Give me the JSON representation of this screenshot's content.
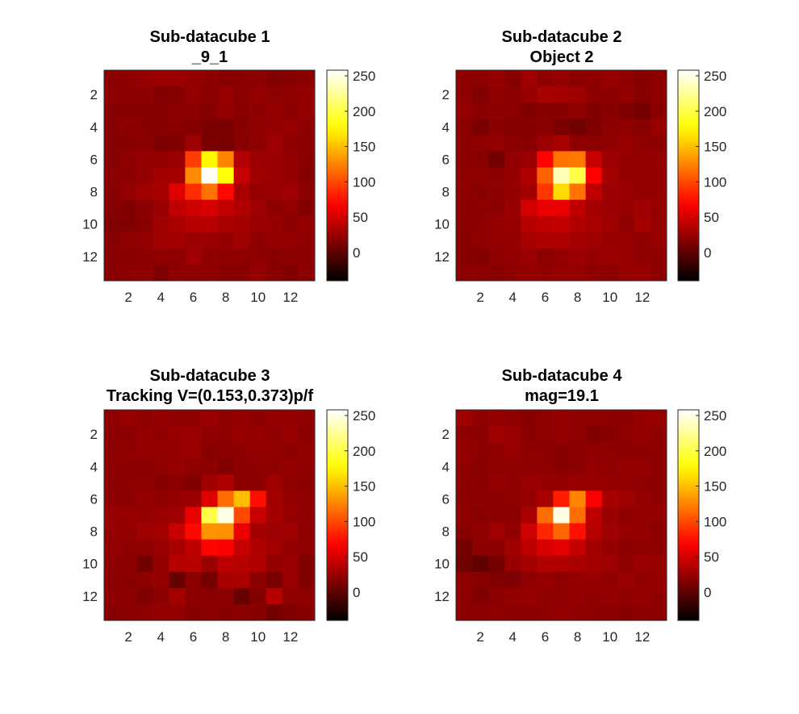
{
  "chart_data": [
    {
      "type": "heatmap",
      "title": "Sub-datacube 1",
      "subtitle": "_9_1",
      "xticks": [
        2,
        4,
        6,
        8,
        10,
        12
      ],
      "yticks": [
        2,
        4,
        6,
        8,
        10,
        12
      ],
      "xlim": [
        0.5,
        13.5
      ],
      "ylim": [
        0.5,
        13.5
      ],
      "colormap": "hot",
      "clim": [
        -40,
        258
      ],
      "colorbar_ticks": [
        0,
        50,
        100,
        150,
        200,
        250
      ],
      "colorbar_tick_labels": [
        "0",
        "50",
        "100",
        "150",
        "200",
        "250"
      ],
      "values": [
        [
          20,
          22,
          24,
          26,
          27,
          24,
          21,
          17,
          19,
          20,
          16,
          17,
          20
        ],
        [
          21,
          20,
          21,
          16,
          17,
          23,
          20,
          25,
          20,
          23,
          21,
          22,
          24
        ],
        [
          18,
          17,
          17,
          19,
          20,
          20,
          17,
          23,
          19,
          21,
          23,
          20,
          24
        ],
        [
          18,
          21,
          19,
          18,
          19,
          17,
          13,
          12,
          18,
          22,
          23,
          25,
          21
        ],
        [
          17,
          18,
          20,
          13,
          16,
          28,
          12,
          12,
          19,
          21,
          28,
          21,
          20
        ],
        [
          18,
          22,
          24,
          23,
          26,
          95,
          175,
          125,
          36,
          27,
          26,
          23,
          19
        ],
        [
          20,
          21,
          23,
          29,
          30,
          128,
          255,
          180,
          44,
          28,
          26,
          23,
          17
        ],
        [
          19,
          24,
          28,
          31,
          55,
          88,
          118,
          72,
          32,
          23,
          26,
          28,
          20
        ],
        [
          17,
          16,
          20,
          26,
          42,
          48,
          52,
          43,
          35,
          28,
          20,
          23,
          16
        ],
        [
          15,
          16,
          19,
          28,
          33,
          38,
          39,
          32,
          30,
          26,
          25,
          20,
          23
        ],
        [
          18,
          22,
          23,
          28,
          30,
          27,
          26,
          24,
          28,
          21,
          24,
          23,
          21
        ],
        [
          19,
          19,
          20,
          22,
          22,
          28,
          22,
          21,
          22,
          22,
          18,
          20,
          21
        ],
        [
          19,
          20,
          21,
          14,
          21,
          20,
          21,
          18,
          19,
          24,
          18,
          16,
          20
        ]
      ]
    },
    {
      "type": "heatmap",
      "title": "Sub-datacube 2",
      "subtitle": "Object 2",
      "xticks": [
        2,
        4,
        6,
        8,
        10,
        12
      ],
      "yticks": [
        2,
        4,
        6,
        8,
        10,
        12
      ],
      "xlim": [
        0.5,
        13.5
      ],
      "ylim": [
        0.5,
        13.5
      ],
      "colormap": "hot",
      "clim": [
        -40,
        258
      ],
      "colorbar_ticks": [
        0,
        50,
        100,
        150,
        200,
        250
      ],
      "colorbar_tick_labels": [
        "0",
        "50",
        "100",
        "150",
        "200",
        "250"
      ],
      "values": [
        [
          22,
          20,
          24,
          17,
          28,
          22,
          24,
          20,
          22,
          25,
          22,
          17,
          20
        ],
        [
          21,
          15,
          22,
          20,
          25,
          32,
          30,
          28,
          21,
          20,
          23,
          18,
          22
        ],
        [
          23,
          19,
          21,
          20,
          15,
          18,
          19,
          22,
          16,
          19,
          14,
          10,
          19
        ],
        [
          20,
          12,
          19,
          17,
          18,
          20,
          13,
          8,
          14,
          20,
          22,
          18,
          25
        ],
        [
          21,
          22,
          23,
          20,
          19,
          26,
          32,
          22,
          20,
          22,
          25,
          21,
          20
        ],
        [
          20,
          18,
          10,
          23,
          26,
          70,
          118,
          120,
          45,
          27,
          24,
          23,
          24
        ],
        [
          22,
          22,
          21,
          25,
          35,
          110,
          235,
          200,
          68,
          30,
          24,
          24,
          23
        ],
        [
          22,
          18,
          21,
          24,
          30,
          92,
          162,
          118,
          42,
          27,
          26,
          23,
          23
        ],
        [
          20,
          21,
          20,
          26,
          50,
          60,
          60,
          42,
          30,
          27,
          25,
          28,
          25
        ],
        [
          20,
          21,
          23,
          25,
          38,
          42,
          44,
          36,
          32,
          28,
          22,
          30,
          24
        ],
        [
          18,
          22,
          23,
          24,
          32,
          35,
          35,
          30,
          28,
          25,
          25,
          22,
          24
        ],
        [
          19,
          16,
          22,
          23,
          26,
          20,
          24,
          27,
          24,
          26,
          25,
          22,
          22
        ],
        [
          20,
          20,
          19,
          22,
          23,
          22,
          24,
          24,
          22,
          19,
          24,
          25,
          20
        ]
      ]
    },
    {
      "type": "heatmap",
      "title": "Sub-datacube 3",
      "subtitle": "Tracking V=(0.153,0.373)p/f",
      "xticks": [
        2,
        4,
        6,
        8,
        10,
        12
      ],
      "yticks": [
        2,
        4,
        6,
        8,
        10,
        12
      ],
      "xlim": [
        0.5,
        13.5
      ],
      "ylim": [
        0.5,
        13.5
      ],
      "colormap": "hot",
      "clim": [
        -40,
        258
      ],
      "colorbar_ticks": [
        0,
        50,
        100,
        150,
        200,
        250
      ],
      "colorbar_tick_labels": [
        "0",
        "50",
        "100",
        "150",
        "200",
        "250"
      ],
      "values": [
        [
          22,
          24,
          22,
          24,
          21,
          22,
          26,
          22,
          24,
          22,
          24,
          23,
          22
        ],
        [
          21,
          20,
          24,
          22,
          25,
          26,
          22,
          22,
          25,
          24,
          22,
          25,
          20
        ],
        [
          21,
          22,
          24,
          23,
          24,
          26,
          18,
          20,
          22,
          23,
          23,
          20,
          23
        ],
        [
          22,
          20,
          20,
          22,
          24,
          22,
          20,
          15,
          20,
          22,
          21,
          23,
          22
        ],
        [
          21,
          21,
          22,
          18,
          20,
          16,
          28,
          35,
          20,
          20,
          28,
          22,
          20
        ],
        [
          22,
          20,
          24,
          22,
          25,
          26,
          55,
          115,
          150,
          75,
          30,
          24,
          22
        ],
        [
          24,
          25,
          24,
          26,
          28,
          60,
          200,
          250,
          100,
          45,
          30,
          25,
          21
        ],
        [
          24,
          23,
          28,
          30,
          45,
          72,
          132,
          130,
          60,
          30,
          27,
          28,
          22
        ],
        [
          23,
          21,
          22,
          26,
          32,
          42,
          70,
          68,
          44,
          36,
          29,
          23,
          22
        ],
        [
          21,
          20,
          8,
          23,
          39,
          38,
          26,
          40,
          38,
          36,
          23,
          26,
          15
        ],
        [
          20,
          18,
          21,
          24,
          4,
          20,
          10,
          32,
          32,
          20,
          12,
          26,
          16
        ],
        [
          21,
          21,
          14,
          20,
          30,
          20,
          19,
          20,
          4,
          16,
          38,
          22,
          22
        ],
        [
          18,
          20,
          22,
          24,
          23,
          18,
          20,
          18,
          20,
          18,
          10,
          16,
          18
        ]
      ]
    },
    {
      "type": "heatmap",
      "title": "Sub-datacube 4",
      "subtitle": "mag=19.1",
      "xticks": [
        2,
        4,
        6,
        8,
        10,
        12
      ],
      "yticks": [
        2,
        4,
        6,
        8,
        10,
        12
      ],
      "xlim": [
        0.5,
        13.5
      ],
      "ylim": [
        0.5,
        13.5
      ],
      "colormap": "hot",
      "clim": [
        -40,
        258
      ],
      "colorbar_ticks": [
        0,
        50,
        100,
        150,
        200,
        250
      ],
      "colorbar_tick_labels": [
        "0",
        "50",
        "100",
        "150",
        "200",
        "250"
      ],
      "values": [
        [
          28,
          22,
          24,
          21,
          18,
          22,
          24,
          22,
          22,
          21,
          20,
          24,
          25
        ],
        [
          21,
          20,
          28,
          26,
          19,
          22,
          24,
          22,
          16,
          18,
          22,
          24,
          22
        ],
        [
          23,
          21,
          22,
          25,
          21,
          20,
          19,
          20,
          22,
          22,
          20,
          21,
          20
        ],
        [
          22,
          19,
          22,
          22,
          22,
          22,
          18,
          20,
          24,
          22,
          24,
          23,
          20
        ],
        [
          21,
          19,
          24,
          22,
          26,
          24,
          24,
          25,
          25,
          24,
          23,
          22,
          20
        ],
        [
          21,
          21,
          20,
          22,
          24,
          32,
          80,
          125,
          68,
          32,
          28,
          24,
          22
        ],
        [
          22,
          18,
          21,
          20,
          32,
          115,
          250,
          115,
          40,
          26,
          22,
          24,
          23
        ],
        [
          18,
          22,
          28,
          22,
          48,
          85,
          112,
          75,
          38,
          28,
          25,
          23,
          20
        ],
        [
          10,
          20,
          21,
          28,
          40,
          52,
          58,
          44,
          30,
          24,
          20,
          22,
          22
        ],
        [
          8,
          1,
          10,
          24,
          30,
          36,
          35,
          32,
          30,
          28,
          22,
          26,
          24
        ],
        [
          20,
          18,
          16,
          14,
          22,
          24,
          22,
          25,
          24,
          22,
          26,
          22,
          24
        ],
        [
          22,
          14,
          20,
          23,
          25,
          22,
          22,
          24,
          22,
          24,
          22,
          24,
          22
        ],
        [
          20,
          21,
          22,
          20,
          20,
          22,
          23,
          22,
          21,
          20,
          18,
          22,
          20
        ]
      ]
    }
  ]
}
